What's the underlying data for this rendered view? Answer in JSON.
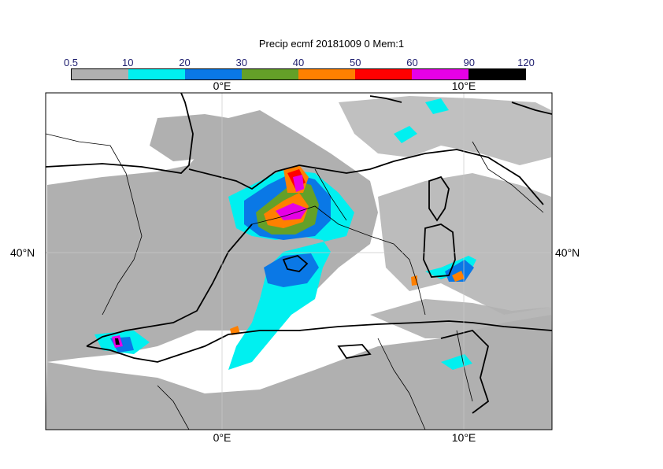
{
  "title": "Precip ecmf 20181009 0 Mem:1",
  "colorbar": {
    "ticks": [
      "0.5",
      "10",
      "20",
      "30",
      "40",
      "50",
      "60",
      "90",
      "120"
    ],
    "colors": [
      "#b0b0b0",
      "#00f0f0",
      "#0a78e6",
      "#64a028",
      "#ff8000",
      "#ff0000",
      "#e600e6",
      "#000000"
    ]
  },
  "axes": {
    "lon_top": [
      "0°E",
      "10°E"
    ],
    "lon_bottom": [
      "0°E",
      "10°E"
    ],
    "lat_left": "40°N",
    "lat_right": "40°N"
  }
}
